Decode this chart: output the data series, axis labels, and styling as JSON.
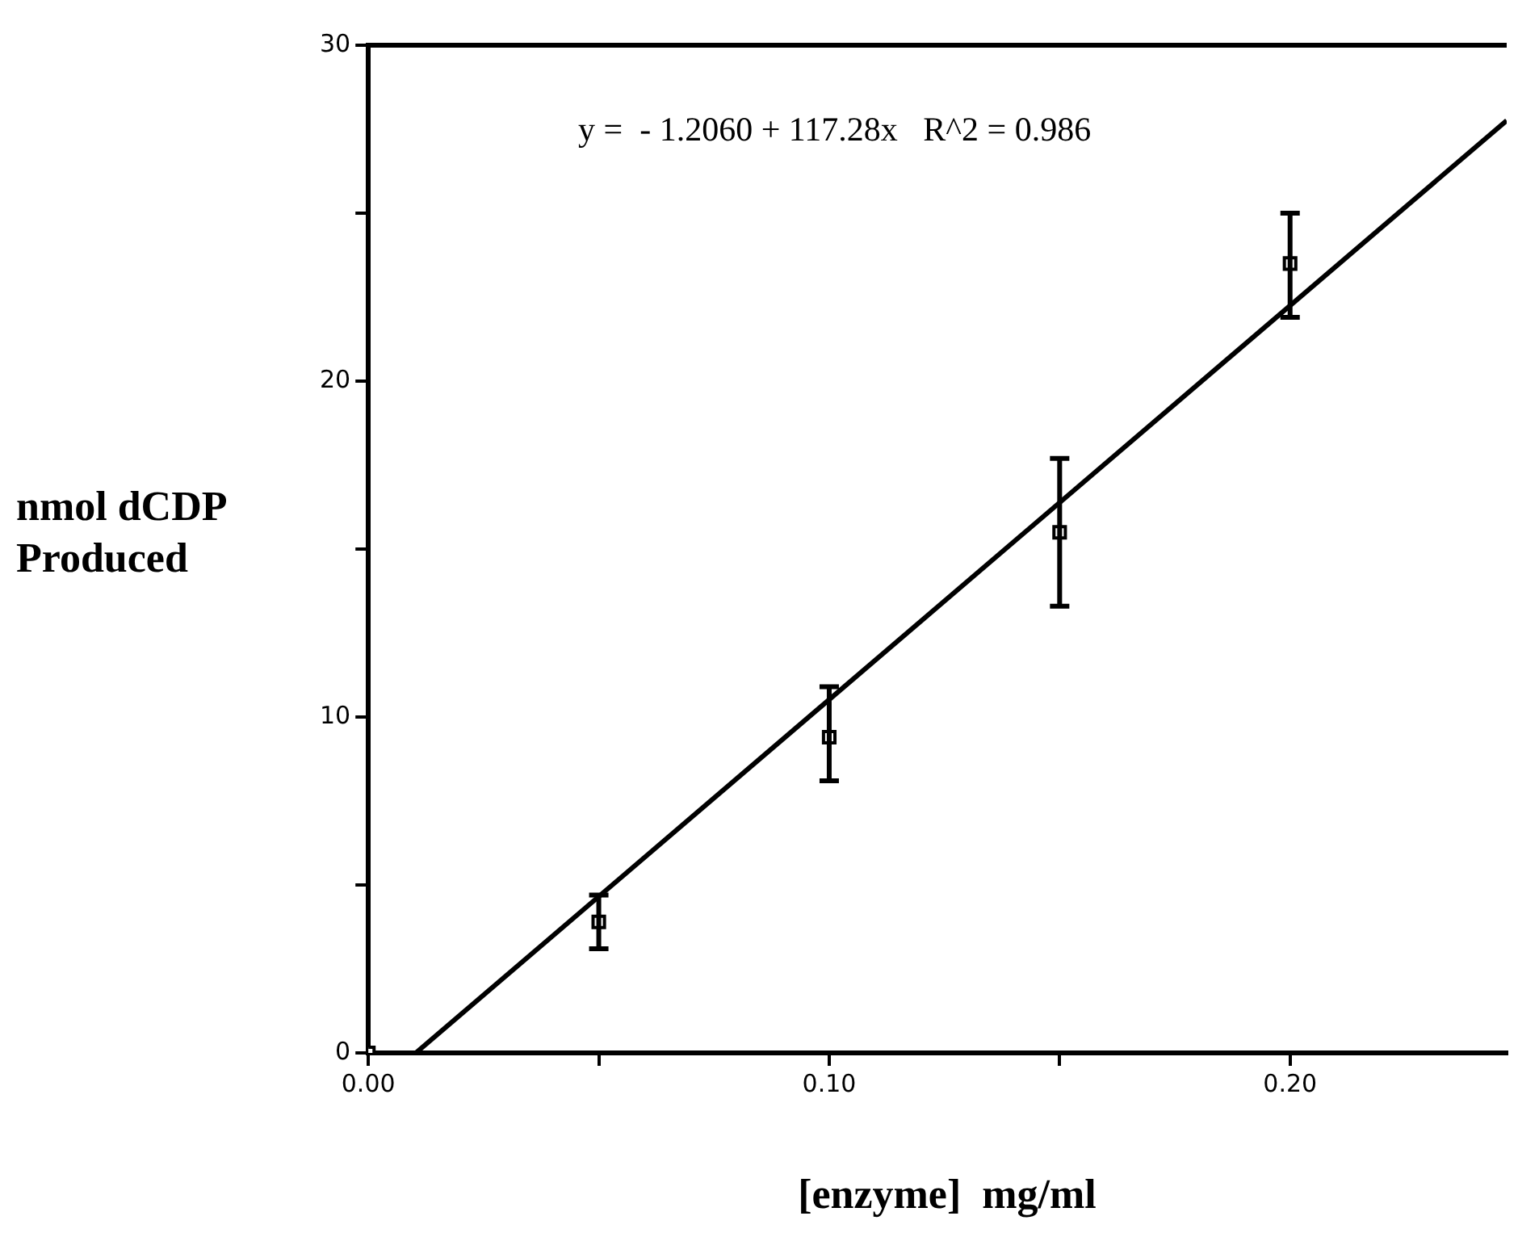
{
  "chart_data": {
    "type": "scatter",
    "xlabel": "[enzyme]  mg/ml",
    "ylabel": "nmol dCDP Produced",
    "annotations": [
      "y =  - 1.2060 + 117.28x   R^2 = 0.986"
    ],
    "xlim": [
      0,
      0.247
    ],
    "ylim": [
      0,
      30
    ],
    "xticks": [
      {
        "value": 0,
        "label": "0.00"
      },
      {
        "value": 0.05,
        "label": null
      },
      {
        "value": 0.1,
        "label": "0.10"
      },
      {
        "value": 0.15,
        "label": null
      },
      {
        "value": 0.2,
        "label": "0.20"
      }
    ],
    "yticks": [
      0,
      {
        "value": 5,
        "label": null
      },
      10,
      {
        "value": 15,
        "label": null
      },
      20,
      {
        "value": 25,
        "label": null
      },
      30
    ],
    "grid": false,
    "legend": false,
    "marker": "square",
    "series": [
      {
        "type": "scatter",
        "color": "#000000",
        "x": [
          0,
          0.05,
          0.1,
          0.15,
          0.2
        ],
        "values": [
          0,
          3.9,
          9.4,
          15.5,
          23.5
        ],
        "errors": [
          null,
          [
            3.1,
            4.7
          ],
          [
            8.1,
            10.9
          ],
          [
            13.3,
            17.7
          ],
          [
            21.9,
            25.0
          ]
        ]
      },
      {
        "type": "line",
        "color": "#000000",
        "marker": "none",
        "x": [
          0.0103,
          0.247
        ],
        "values": [
          0,
          27.76
        ]
      }
    ]
  }
}
